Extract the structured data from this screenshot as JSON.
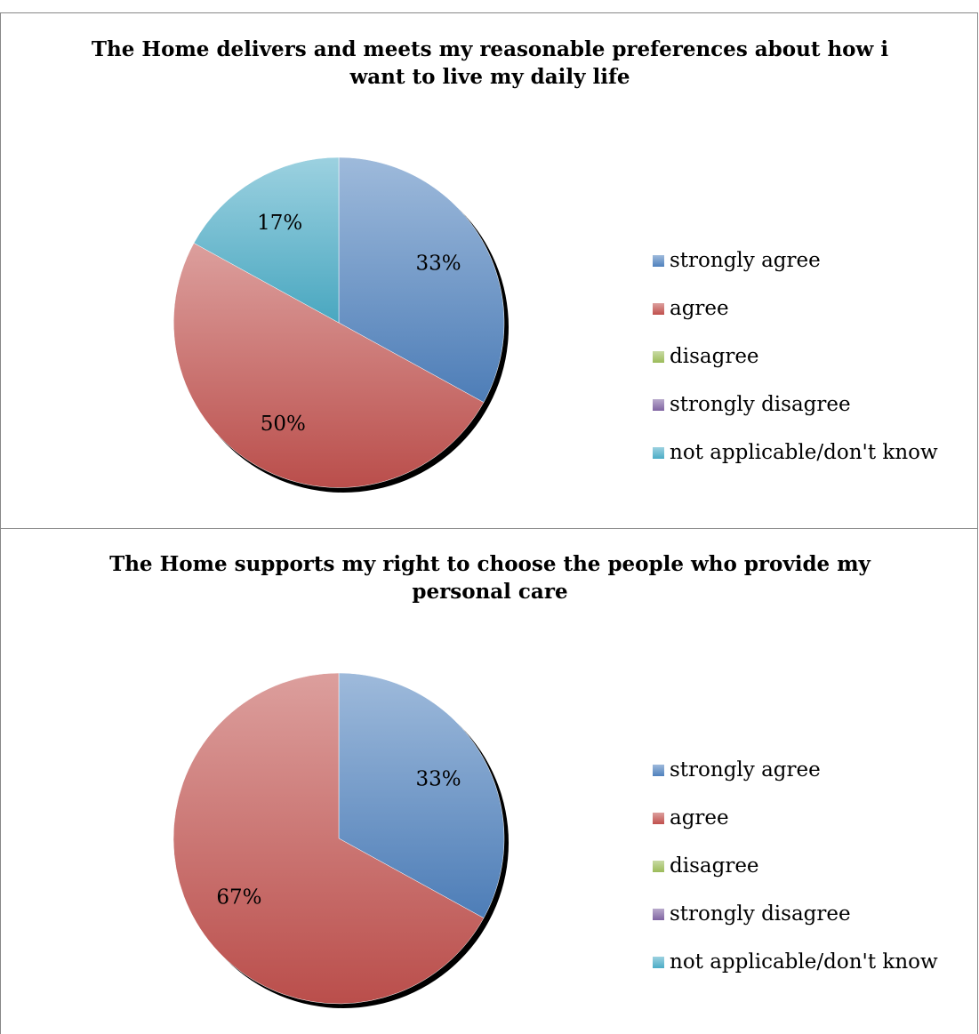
{
  "chart_data": [
    {
      "type": "pie",
      "title": "The Home delivers and meets my reasonable preferences about how i want to live my daily life",
      "categories": [
        "strongly agree",
        "agree",
        "disagree",
        "strongly disagree",
        "not applicable/don't know"
      ],
      "values": [
        33,
        50,
        0,
        0,
        17
      ],
      "data_labels": [
        "33%",
        "50%",
        "",
        "",
        "17%"
      ],
      "colors": [
        "#4F81BD",
        "#C0504D",
        "#9BBB59",
        "#8064A2",
        "#4BACC6"
      ],
      "legend_position": "right"
    },
    {
      "type": "pie",
      "title": "The Home supports my right to choose the people who provide my personal care",
      "categories": [
        "strongly agree",
        "agree",
        "disagree",
        "strongly disagree",
        "not applicable/don't know"
      ],
      "values": [
        33,
        67,
        0,
        0,
        0
      ],
      "data_labels": [
        "33%",
        "67%",
        "",
        "",
        ""
      ],
      "colors": [
        "#4F81BD",
        "#C0504D",
        "#9BBB59",
        "#8064A2",
        "#4BACC6"
      ],
      "legend_position": "right"
    }
  ]
}
